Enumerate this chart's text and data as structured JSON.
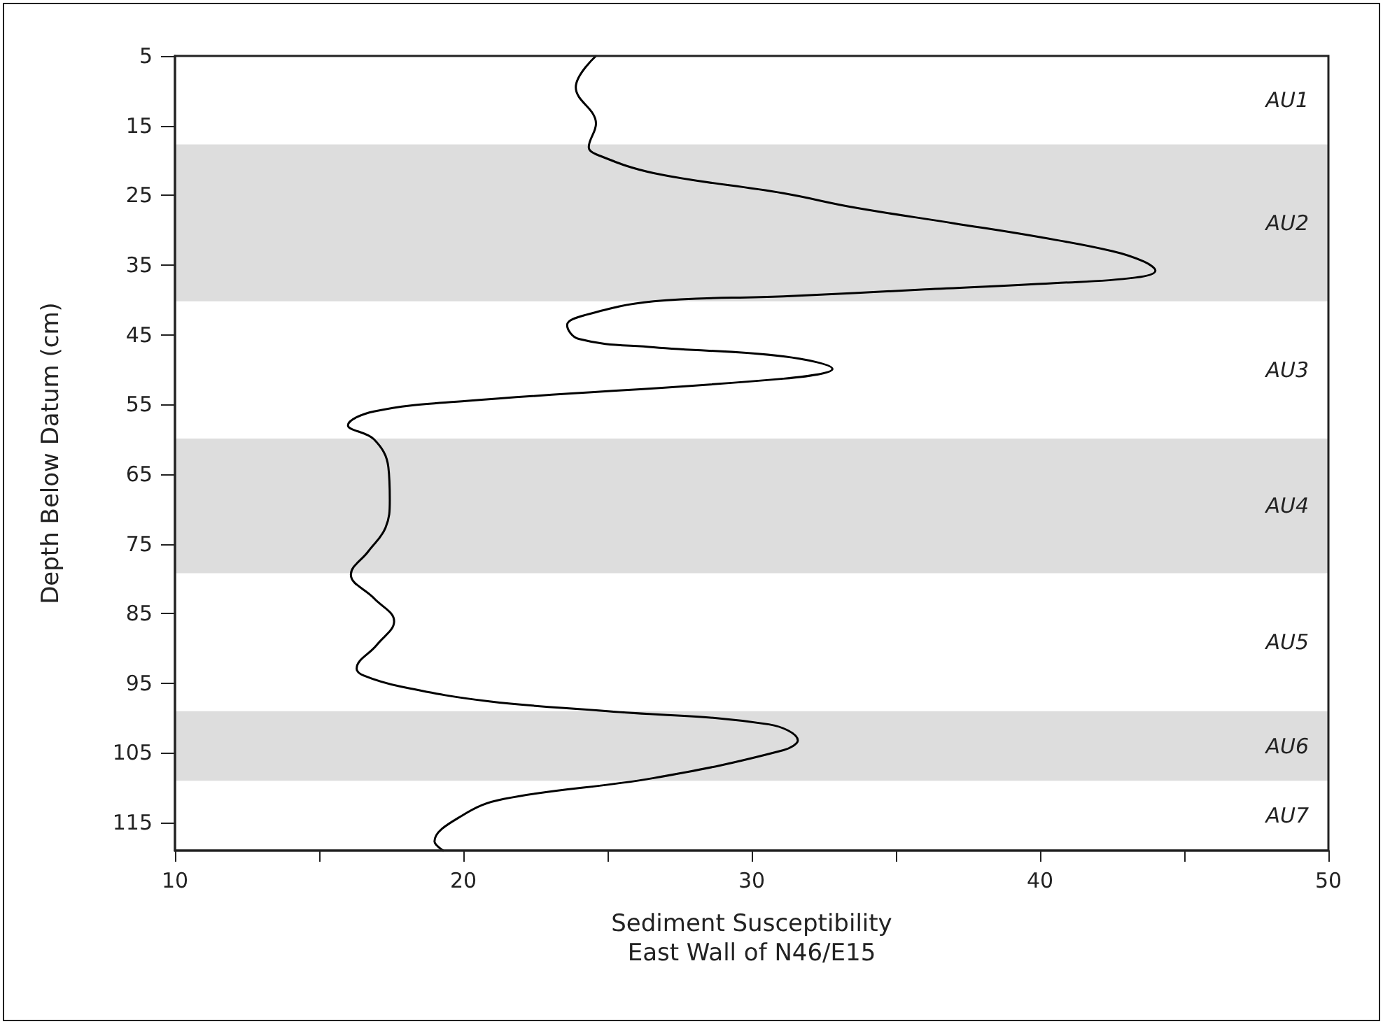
{
  "chart_data": {
    "type": "line",
    "xlabel": "Sediment Susceptibility\nEast Wall of N46/E15",
    "ylabel": "Depth Below Datum (cm)",
    "xlim": [
      10,
      50
    ],
    "xticks": [
      10,
      {
        "value": 15,
        "label": null
      },
      20,
      {
        "value": 25,
        "label": null
      },
      30,
      {
        "value": 35,
        "label": null
      },
      40,
      {
        "value": 45,
        "label": null
      },
      50
    ],
    "ylim": [
      119,
      5
    ],
    "yticks": [
      5,
      15,
      25,
      35,
      45,
      55,
      65,
      75,
      85,
      95,
      105,
      115
    ],
    "grid": false,
    "marker": "none",
    "line_style": "solid",
    "series": [
      {
        "color": "#000000",
        "x": [
          24.6,
          23.9,
          24.6,
          24.35,
          24.6,
          26.6,
          31.1,
          33.5,
          37,
          40,
          42.5,
          43.6,
          44.0,
          43.3,
          40.5,
          36,
          31.1,
          26.6,
          24.2,
          23.6,
          24.0,
          26.6,
          31.1,
          32.8,
          31.1,
          20.1,
          16.9,
          16.0,
          16.9,
          17.4,
          17.45,
          17.3,
          16.7,
          16.1,
          16.9,
          17.6,
          17.0,
          16.3,
          16.55,
          17.85,
          20.9,
          25.0,
          30.6,
          31.6,
          31.1,
          26.6,
          21.4,
          19.95,
          19.0,
          19.3
        ],
        "values": [
          5,
          9.5,
          14.7,
          18.1,
          19.1,
          21.8,
          24.7,
          26.7,
          29,
          31,
          33,
          34.5,
          35.8,
          36.8,
          37.6,
          38.5,
          39.5,
          40.2,
          42.2,
          43.6,
          45.6,
          46.8,
          48.1,
          49.9,
          51.3,
          54.5,
          56,
          58,
          60,
          64,
          68.7,
          72.7,
          76.1,
          79.4,
          82.8,
          86.1,
          89.5,
          92.9,
          93.9,
          95.5,
          97.6,
          99.0,
          100.9,
          103.2,
          104.6,
          108.6,
          111.6,
          114,
          117.7,
          119
        ]
      }
    ],
    "bands": [
      {
        "axis": "y",
        "from": 17.7,
        "to": 40.2,
        "label": "AU2",
        "color": "#dddddd"
      },
      {
        "axis": "y",
        "from": 59.9,
        "to": 79.2,
        "label": "AU4",
        "color": "#dddddd"
      },
      {
        "axis": "y",
        "from": 99,
        "to": 109,
        "label": "AU6",
        "color": "#dddddd"
      }
    ],
    "annotations": [
      "AU1",
      "AU3",
      "AU5",
      "AU7"
    ]
  }
}
